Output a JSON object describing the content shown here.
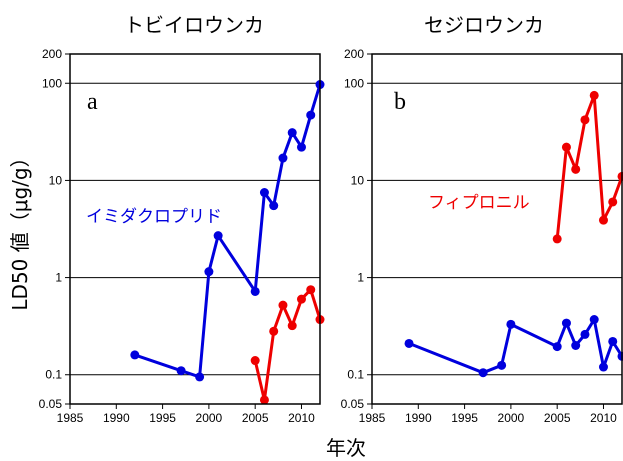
{
  "y_axis_title": "LD50 値（μg/g）",
  "x_axis_title": "年次",
  "chart_data": [
    {
      "type": "line",
      "title": "トビイロウンカ",
      "panel_label": "a",
      "xlabel": "年次",
      "ylabel": "LD50 値（μg/g）",
      "xlim": [
        1985,
        2012
      ],
      "ylim": [
        0.05,
        200
      ],
      "y_scale": "log",
      "x_ticks": [
        1985,
        1990,
        1995,
        2000,
        2005,
        2010
      ],
      "y_ticks": [
        0.05,
        0.1,
        1,
        10,
        100,
        200
      ],
      "y_tick_labels": [
        "0.05",
        "0.1",
        "1",
        "10",
        "100",
        "200"
      ],
      "grid": "horizontal at 0.1, 1, 10, 100",
      "series": [
        {
          "name": "イミダクロプリド",
          "color": "#0000dd",
          "x": [
            1992,
            1997,
            1999,
            2000,
            2001,
            2005,
            2006,
            2007,
            2008,
            2009,
            2010,
            2011,
            2012
          ],
          "y": [
            0.16,
            0.11,
            0.095,
            1.15,
            2.7,
            0.72,
            7.5,
            5.5,
            17,
            31,
            22,
            47,
            97
          ]
        },
        {
          "name": "",
          "color": "#ee0000",
          "x": [
            2005,
            2006,
            2007,
            2008,
            2009,
            2010,
            2011,
            2012
          ],
          "y": [
            0.14,
            0.055,
            0.28,
            0.52,
            0.32,
            0.6,
            0.75,
            0.37
          ]
        }
      ]
    },
    {
      "type": "line",
      "title": "セジロウンカ",
      "panel_label": "b",
      "xlabel": "年次",
      "ylabel": "LD50 値（μg/g）",
      "xlim": [
        1985,
        2012
      ],
      "ylim": [
        0.05,
        200
      ],
      "y_scale": "log",
      "x_ticks": [
        1985,
        1990,
        1995,
        2000,
        2005,
        2010
      ],
      "y_ticks": [
        0.05,
        0.1,
        1,
        10,
        100,
        200
      ],
      "y_tick_labels": [
        "0.05",
        "0.1",
        "1",
        "10",
        "100",
        "200"
      ],
      "grid": "horizontal at 0.1, 1, 10, 100",
      "series": [
        {
          "name": "",
          "color": "#0000dd",
          "x": [
            1989,
            1997,
            1999,
            2000,
            2005,
            2006,
            2007,
            2008,
            2009,
            2010,
            2011,
            2012
          ],
          "y": [
            0.21,
            0.105,
            0.125,
            0.33,
            0.195,
            0.34,
            0.2,
            0.26,
            0.37,
            0.12,
            0.22,
            0.155
          ]
        },
        {
          "name": "フィプロニル",
          "color": "#ee0000",
          "x": [
            2005,
            2006,
            2007,
            2008,
            2009,
            2010,
            2011,
            2012
          ],
          "y": [
            2.5,
            22,
            13,
            42,
            75,
            3.9,
            6,
            11
          ]
        }
      ]
    }
  ]
}
